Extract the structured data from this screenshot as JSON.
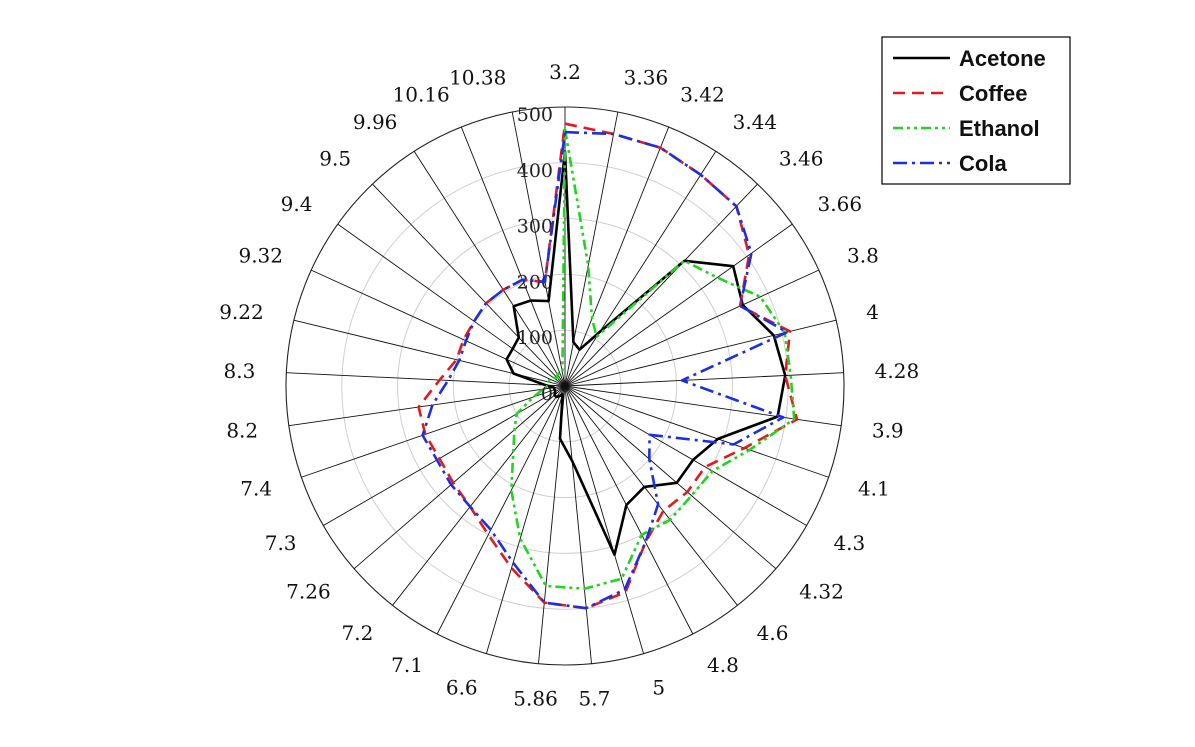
{
  "chart_data": {
    "type": "radar",
    "title": "",
    "categories": [
      "3.2",
      "3.36",
      "3.42",
      "3.44",
      "3.46",
      "3.66",
      "3.8",
      "4",
      "4.28",
      "3.9",
      "4.1",
      "4.3",
      "4.32",
      "4.6",
      "4.8",
      "5",
      "5.7",
      "5.86",
      "6.6",
      "7.1",
      "7.2",
      "7.26",
      "7.3",
      "7.4",
      "8.2",
      "8.3",
      "9.22",
      "9.32",
      "9.4",
      "9.5",
      "9.96",
      "10.16",
      "10.38"
    ],
    "rlim": [
      0,
      500
    ],
    "r_ticks": [
      0,
      100,
      200,
      300,
      400,
      500
    ],
    "r_tick_labels": [
      "0",
      "100",
      "200",
      "300",
      "400",
      "500"
    ],
    "legend_position": "top-right",
    "series": [
      {
        "name": "Acetone",
        "color": "#000000",
        "dash": "solid",
        "values": [
          420,
          80,
          70,
          115,
          310,
          370,
          350,
          385,
          395,
          385,
          290,
          265,
          265,
          230,
          240,
          315,
          135,
          95,
          15,
          20,
          25,
          25,
          20,
          20,
          20,
          35,
          95,
          115,
          115,
          120,
          170,
          165,
          155
        ]
      },
      {
        "name": "Coffee",
        "color": "#e31a1c",
        "dash": "dashed",
        "values": [
          470,
          460,
          460,
          450,
          445,
          405,
          345,
          415,
          395,
          420,
          340,
          290,
          290,
          285,
          315,
          385,
          400,
          390,
          340,
          300,
          275,
          265,
          260,
          265,
          265,
          225,
          200,
          200,
          200,
          205,
          205,
          205,
          190
        ]
      },
      {
        "name": "Ethanol",
        "color": "#22d322",
        "dash": "dashdot2",
        "values": [
          460,
          220,
          130,
          105,
          310,
          335,
          385,
          405,
          405,
          415,
          350,
          305,
          300,
          305,
          300,
          360,
          365,
          360,
          285,
          210,
          150,
          120,
          100,
          60,
          40,
          30,
          30,
          30,
          25,
          20,
          25,
          25,
          25
        ]
      },
      {
        "name": "Cola",
        "color": "#1c2fe0",
        "dash": "dashdot",
        "values": [
          455,
          460,
          460,
          450,
          445,
          410,
          345,
          410,
          210,
          395,
          320,
          175,
          200,
          270,
          315,
          380,
          400,
          390,
          330,
          290,
          275,
          270,
          265,
          270,
          240,
          210,
          195,
          195,
          200,
          205,
          205,
          205,
          190
        ]
      }
    ]
  }
}
